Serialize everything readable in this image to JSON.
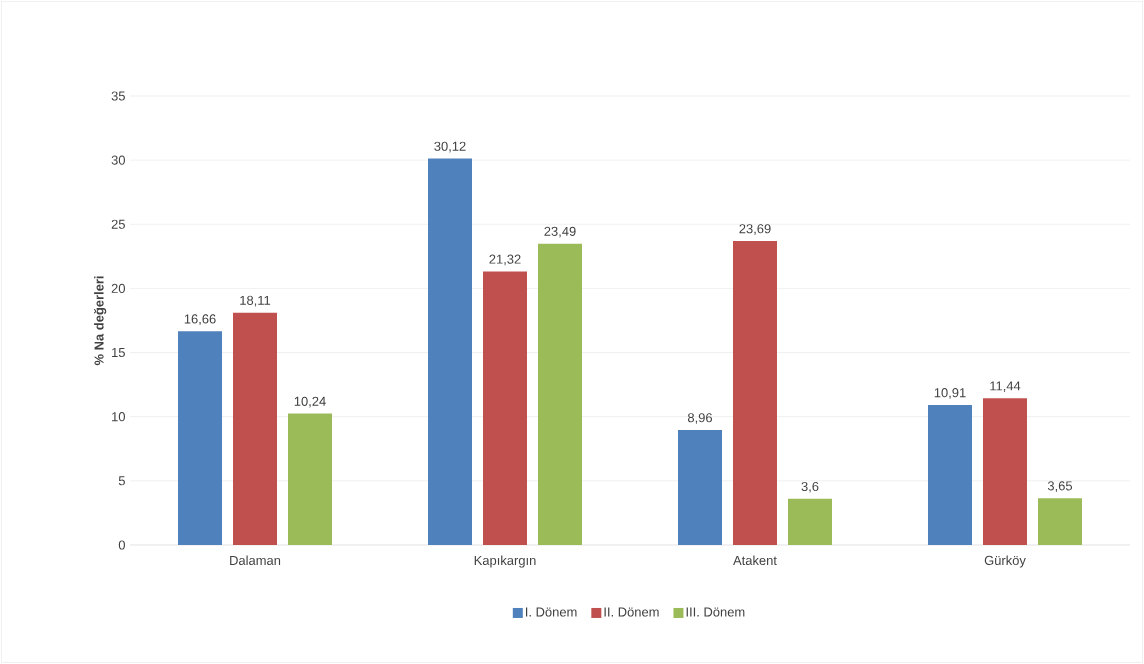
{
  "chart_data": {
    "type": "bar",
    "ylabel": "% Na değerleri",
    "categories": [
      "Dalaman",
      "Kapıkargın",
      "Atakent",
      "Gürköy"
    ],
    "series": [
      {
        "name": "I. Dönem",
        "color": "#4f81bd",
        "values": [
          16.66,
          30.12,
          8.96,
          10.91
        ],
        "value_labels": [
          "16,66",
          "30,12",
          "8,96",
          "10,91"
        ]
      },
      {
        "name": "II. Dönem",
        "color": "#c0504d",
        "values": [
          18.11,
          21.32,
          23.69,
          11.44
        ],
        "value_labels": [
          "18,11",
          "21,32",
          "23,69",
          "11,44"
        ]
      },
      {
        "name": "III. Dönem",
        "color": "#9bbb59",
        "values": [
          10.24,
          23.49,
          3.6,
          3.65
        ],
        "value_labels": [
          "10,24",
          "23,49",
          "3,6",
          "3,65"
        ]
      }
    ],
    "ylim": [
      0,
      35
    ],
    "yticks": [
      0,
      5,
      10,
      15,
      20,
      25,
      30,
      35
    ],
    "grid": "y",
    "legend": "bottom"
  }
}
